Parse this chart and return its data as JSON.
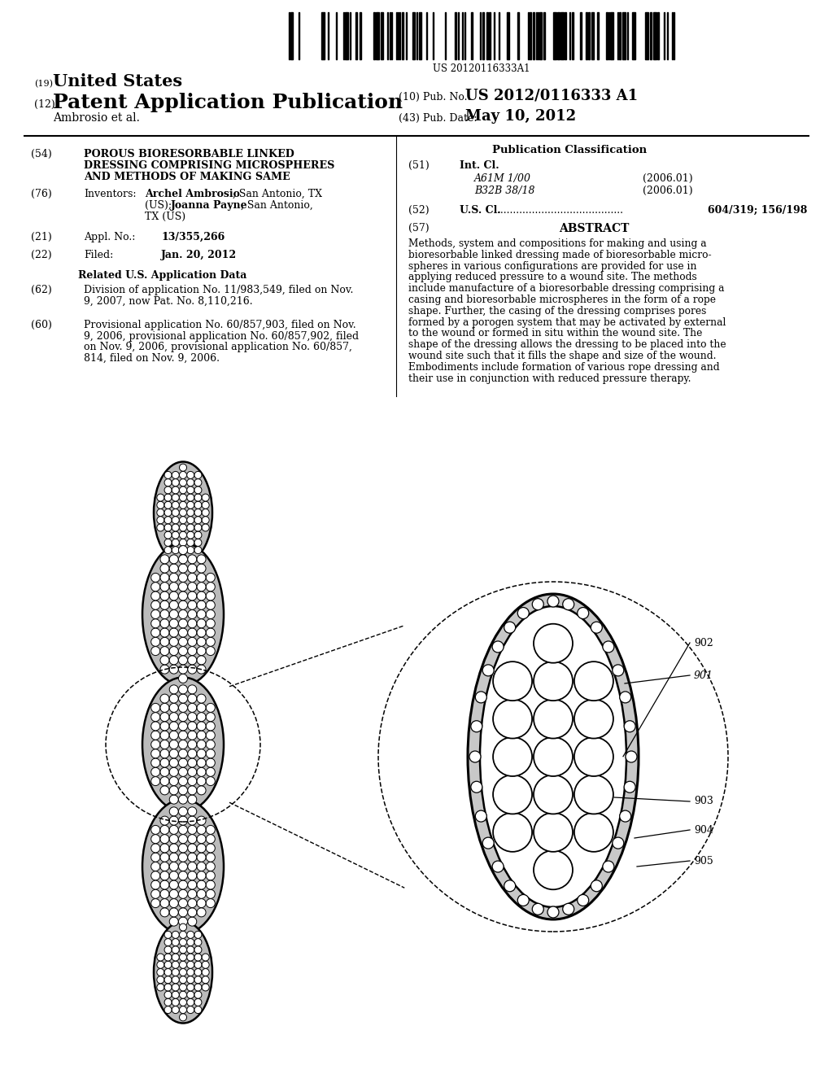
{
  "background_color": "#ffffff",
  "barcode_text": "US 20120116333A1",
  "title_19": "(19) United States",
  "title_12_prefix": "(12)",
  "title_12_main": "Patent Application Publication",
  "pub_no_label": "(10) Pub. No.:",
  "pub_no_value": "US 2012/0116333 A1",
  "author": "Ambrosio et al.",
  "pub_date_label": "(43) Pub. Date:",
  "pub_date_value": "May 10, 2012",
  "section54_lines": [
    "POROUS BIORESORBABLE LINKED",
    "DRESSING COMPRISING MICROSPHERES",
    "AND METHODS OF MAKING SAME"
  ],
  "section76_title": "Inventors:",
  "section76_name1": "Archel Ambrosio",
  "section76_rest1": ", San Antonio, TX",
  "section76_name2": "Joanna Payne",
  "section76_rest2": ", San Antonio,",
  "section76_line3": "TX (US)",
  "section21_title": "Appl. No.:",
  "section21_value": "13/355,266",
  "section22_title": "Filed:",
  "section22_value": "Jan. 20, 2012",
  "related_header": "Related U.S. Application Data",
  "section62_lines": [
    "Division of application No. 11/983,549, filed on Nov.",
    "9, 2007, now Pat. No. 8,110,216."
  ],
  "section60_lines": [
    "Provisional application No. 60/857,903, filed on Nov.",
    "9, 2006, provisional application No. 60/857,902, filed",
    "on Nov. 9, 2006, provisional application No. 60/857,",
    "814, filed on Nov. 9, 2006."
  ],
  "pub_class_header": "Publication Classification",
  "section51_title": "Int. Cl.",
  "section51_a61m": "A61M 1/00",
  "section51_a61m_date": "(2006.01)",
  "section51_b32b": "B32B 38/18",
  "section51_b32b_date": "(2006.01)",
  "section52_title": "U.S. Cl.",
  "section52_dots": " ........................................",
  "section52_value": "604/319; 156/198",
  "section57_title": "ABSTRACT",
  "abstract_lines": [
    "Methods, system and compositions for making and using a",
    "bioresorbable linked dressing made of bioresorbable micro-",
    "spheres in various configurations are provided for use in",
    "applying reduced pressure to a wound site. The methods",
    "include manufacture of a bioresorbable dressing comprising a",
    "casing and bioresorbable microspheres in the form of a rope",
    "shape. Further, the casing of the dressing comprises pores",
    "formed by a porogen system that may be activated by external",
    "to the wound or formed in situ within the wound site. The",
    "shape of the dressing allows the dressing to be placed into the",
    "wound site such that it fills the shape and size of the wound.",
    "Embodiments include formation of various rope dressing and",
    "their use in conjunction with reduced pressure therapy."
  ],
  "label_902": "902",
  "label_901": "901",
  "label_903": "903",
  "label_904": "904",
  "label_905": "905"
}
